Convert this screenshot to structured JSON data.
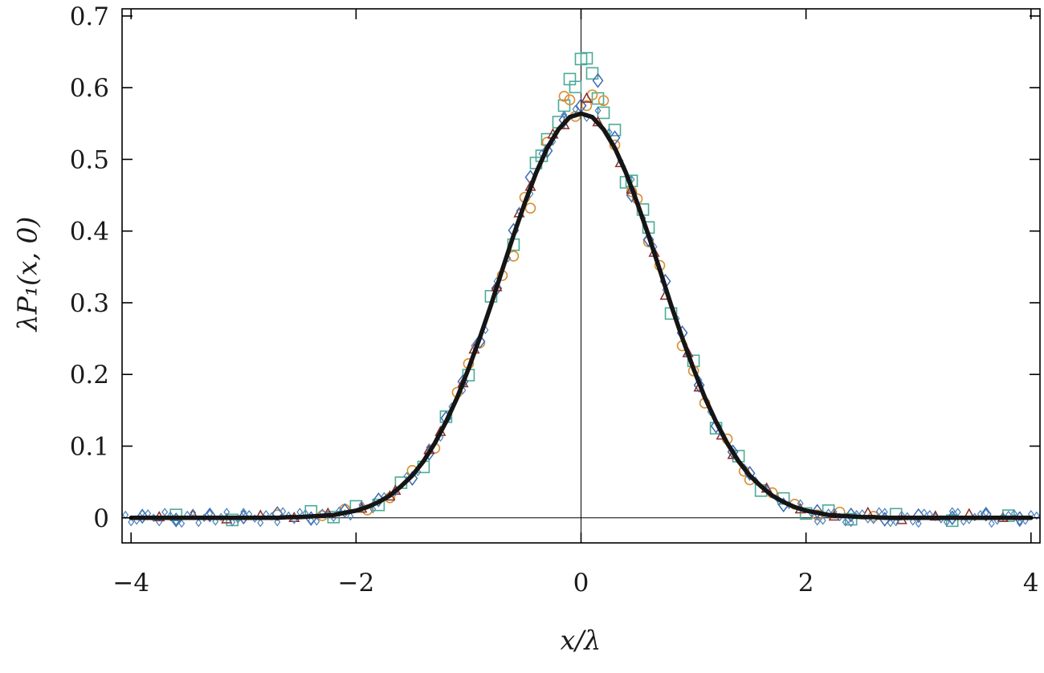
{
  "figure": {
    "background": "#ffffff",
    "frame_color": "#000000",
    "tick_label_color": "#1a1a1a"
  },
  "chart_data": {
    "type": "scatter",
    "title": "",
    "xlabel": "x/λ",
    "ylabel": "λP₁(x, 0)",
    "xlim": [
      -4.08,
      4.08
    ],
    "ylim": [
      -0.035,
      0.71
    ],
    "grid": false,
    "legend": "none",
    "x_ticks": [
      -4,
      -2,
      0,
      2,
      4
    ],
    "x_tick_labels": [
      "−4",
      "−2",
      "0",
      "2",
      "4"
    ],
    "y_ticks": [
      0,
      0.1,
      0.2,
      0.3,
      0.4,
      0.5,
      0.6,
      0.7
    ],
    "y_tick_labels": [
      "0",
      "0.1",
      "0.2",
      "0.3",
      "0.4",
      "0.5",
      "0.6",
      "0.7"
    ],
    "zero_lines": {
      "vertical_x": 0,
      "horizontal_y": 0
    },
    "curve": {
      "name": "theory-gaussian exp(-x^2)/sqrt(pi)",
      "color": "#151515",
      "width": 5.5,
      "x_start": -4.0,
      "x_step": 0.1,
      "y": [
        0,
        0,
        0,
        0,
        0,
        0,
        0,
        0,
        0,
        0,
        0,
        0,
        0,
        0,
        0.001,
        0.001,
        0.002,
        0.003,
        0.004,
        0.007,
        0.01,
        0.015,
        0.022,
        0.031,
        0.044,
        0.059,
        0.079,
        0.104,
        0.134,
        0.168,
        0.208,
        0.251,
        0.297,
        0.346,
        0.394,
        0.439,
        0.481,
        0.516,
        0.542,
        0.559,
        0.564,
        0.559,
        0.542,
        0.516,
        0.481,
        0.439,
        0.394,
        0.346,
        0.297,
        0.251,
        0.208,
        0.168,
        0.134,
        0.104,
        0.079,
        0.059,
        0.044,
        0.031,
        0.022,
        0.015,
        0.01,
        0.007,
        0.004,
        0.003,
        0.002,
        0.001,
        0.001,
        0,
        0,
        0,
        0,
        0,
        0,
        0,
        0,
        0,
        0,
        0,
        0,
        0,
        0
      ]
    },
    "series": [
      {
        "name": "squares",
        "marker": "square",
        "color": "#4aab96",
        "size": 14,
        "stroke_width": 1.6,
        "points": [
          [
            -3.6,
            0.004
          ],
          [
            -3.1,
            -0.003
          ],
          [
            -2.4,
            0.009
          ],
          [
            -2.2,
            0.001
          ],
          [
            -2.0,
            0.016
          ],
          [
            -1.8,
            0.018
          ],
          [
            -1.6,
            0.049
          ],
          [
            -1.4,
            0.071
          ],
          [
            -1.2,
            0.141
          ],
          [
            -1.0,
            0.199
          ],
          [
            -0.8,
            0.309
          ],
          [
            -0.6,
            0.381
          ],
          [
            -0.4,
            0.495
          ],
          [
            -0.35,
            0.505
          ],
          [
            -0.3,
            0.528
          ],
          [
            -0.2,
            0.552
          ],
          [
            -0.15,
            0.575
          ],
          [
            -0.1,
            0.612
          ],
          [
            -0.05,
            0.601
          ],
          [
            0,
            0.64
          ],
          [
            0.05,
            0.641
          ],
          [
            0.1,
            0.62
          ],
          [
            0.15,
            0.585
          ],
          [
            0.2,
            0.565
          ],
          [
            0.3,
            0.541
          ],
          [
            0.4,
            0.468
          ],
          [
            0.45,
            0.47
          ],
          [
            0.55,
            0.43
          ],
          [
            0.6,
            0.405
          ],
          [
            0.8,
            0.285
          ],
          [
            1.0,
            0.219
          ],
          [
            1.2,
            0.125
          ],
          [
            1.4,
            0.086
          ],
          [
            1.6,
            0.038
          ],
          [
            1.8,
            0.027
          ],
          [
            2.0,
            0.006
          ],
          [
            2.2,
            0.01
          ],
          [
            2.4,
            -0.002
          ],
          [
            2.8,
            0.005
          ],
          [
            3.3,
            -0.004
          ],
          [
            3.8,
            0.003
          ]
        ]
      },
      {
        "name": "circles",
        "marker": "circle",
        "color": "#d98e32",
        "size": 12,
        "stroke_width": 1.6,
        "points": [
          [
            -2.7,
            0.004
          ],
          [
            -2.3,
            0.003
          ],
          [
            -2.1,
            0.012
          ],
          [
            -1.9,
            0.011
          ],
          [
            -1.7,
            0.028
          ],
          [
            -1.5,
            0.066
          ],
          [
            -1.3,
            0.097
          ],
          [
            -1.1,
            0.175
          ],
          [
            -1.0,
            0.215
          ],
          [
            -0.9,
            0.244
          ],
          [
            -0.7,
            0.338
          ],
          [
            -0.6,
            0.365
          ],
          [
            -0.5,
            0.447
          ],
          [
            -0.45,
            0.432
          ],
          [
            -0.3,
            0.524
          ],
          [
            -0.15,
            0.588
          ],
          [
            -0.1,
            0.583
          ],
          [
            -0.05,
            0.56
          ],
          [
            0.05,
            0.575
          ],
          [
            0.1,
            0.59
          ],
          [
            0.2,
            0.582
          ],
          [
            0.3,
            0.52
          ],
          [
            0.45,
            0.455
          ],
          [
            0.5,
            0.445
          ],
          [
            0.6,
            0.385
          ],
          [
            0.7,
            0.352
          ],
          [
            0.9,
            0.24
          ],
          [
            1.0,
            0.205
          ],
          [
            1.1,
            0.16
          ],
          [
            1.3,
            0.11
          ],
          [
            1.45,
            0.065
          ],
          [
            1.5,
            0.053
          ],
          [
            1.7,
            0.035
          ],
          [
            1.9,
            0.019
          ],
          [
            2.1,
            0.004
          ],
          [
            2.3,
            0.008
          ],
          [
            2.6,
            0.002
          ]
        ]
      },
      {
        "name": "diamonds",
        "marker": "diamond",
        "color": "#3d6bb3",
        "size": 13,
        "stroke_width": 1.5,
        "points": [
          [
            -3.9,
            0.002
          ],
          [
            -3.6,
            -0.003
          ],
          [
            -3.3,
            0.004
          ],
          [
            -3.0,
            0.001
          ],
          [
            -2.7,
            0.006
          ],
          [
            -2.4,
            -0.001
          ],
          [
            -2.1,
            0.01
          ],
          [
            -1.8,
            0.025
          ],
          [
            -1.5,
            0.055
          ],
          [
            -1.35,
            0.09
          ],
          [
            -1.2,
            0.139
          ],
          [
            -1.05,
            0.19
          ],
          [
            -0.9,
            0.246
          ],
          [
            -0.75,
            0.32
          ],
          [
            -0.6,
            0.401
          ],
          [
            -0.45,
            0.475
          ],
          [
            -0.3,
            0.512
          ],
          [
            -0.15,
            0.555
          ],
          [
            0,
            0.575
          ],
          [
            0.15,
            0.61
          ],
          [
            0.3,
            0.53
          ],
          [
            0.45,
            0.45
          ],
          [
            0.6,
            0.388
          ],
          [
            0.75,
            0.33
          ],
          [
            0.9,
            0.258
          ],
          [
            1.05,
            0.185
          ],
          [
            1.2,
            0.128
          ],
          [
            1.35,
            0.092
          ],
          [
            1.5,
            0.062
          ],
          [
            1.8,
            0.018
          ],
          [
            2.1,
            0.009
          ],
          [
            2.4,
            0.004
          ],
          [
            2.7,
            -0.002
          ],
          [
            3.0,
            0.003
          ],
          [
            3.3,
            0.0
          ],
          [
            3.6,
            0.005
          ],
          [
            3.9,
            -0.001
          ]
        ]
      },
      {
        "name": "triangles",
        "marker": "triangle-up",
        "color": "#8a2f2b",
        "size": 10,
        "stroke_width": 1.5,
        "points": [
          [
            -3.75,
            0.001
          ],
          [
            -3.45,
            0.004
          ],
          [
            -3.15,
            -0.002
          ],
          [
            -2.85,
            0.003
          ],
          [
            -2.55,
            0.0
          ],
          [
            -2.25,
            0.006
          ],
          [
            -1.95,
            0.013
          ],
          [
            -1.7,
            0.03
          ],
          [
            -1.65,
            0.038
          ],
          [
            -1.35,
            0.095
          ],
          [
            -1.25,
            0.12
          ],
          [
            -1.05,
            0.188
          ],
          [
            -0.95,
            0.235
          ],
          [
            -0.75,
            0.322
          ],
          [
            -0.55,
            0.425
          ],
          [
            -0.45,
            0.462
          ],
          [
            -0.25,
            0.535
          ],
          [
            -0.15,
            0.548
          ],
          [
            0.05,
            0.585
          ],
          [
            0.15,
            0.552
          ],
          [
            0.35,
            0.495
          ],
          [
            0.45,
            0.458
          ],
          [
            0.65,
            0.37
          ],
          [
            0.75,
            0.31
          ],
          [
            0.95,
            0.23
          ],
          [
            1.05,
            0.182
          ],
          [
            1.25,
            0.115
          ],
          [
            1.35,
            0.088
          ],
          [
            1.65,
            0.041
          ],
          [
            1.95,
            0.012
          ],
          [
            2.25,
            0.002
          ],
          [
            2.55,
            0.007
          ],
          [
            2.85,
            -0.003
          ],
          [
            3.15,
            0.002
          ],
          [
            3.45,
            0.005
          ],
          [
            3.75,
            0.0
          ]
        ]
      },
      {
        "name": "small-diamonds",
        "marker": "diamond",
        "color": "#4d82bb",
        "size": 7,
        "stroke_width": 1.2,
        "points": [
          [
            -4.05,
            0.004
          ],
          [
            -3.95,
            -0.004
          ],
          [
            -3.85,
            0.006
          ],
          [
            -3.75,
            -0.006
          ],
          [
            -3.65,
            0.003
          ],
          [
            -3.55,
            -0.008
          ],
          [
            -3.45,
            0.007
          ],
          [
            -3.35,
            0.0
          ],
          [
            -3.25,
            -0.005
          ],
          [
            -3.15,
            0.008
          ],
          [
            -3.05,
            -0.002
          ],
          [
            -2.95,
            0.005
          ],
          [
            -2.85,
            -0.007
          ],
          [
            -2.75,
            0.002
          ],
          [
            -2.65,
            0.009
          ],
          [
            -2.55,
            -0.003
          ],
          [
            -2.45,
            0.006
          ],
          [
            -2.35,
            -0.005
          ],
          [
            -2.25,
            0.004
          ],
          [
            -2.15,
            0.01
          ],
          [
            -2.05,
            0.002
          ],
          [
            -1.95,
            0.018
          ],
          [
            -1.85,
            0.012
          ],
          [
            -1.75,
            0.03
          ],
          [
            -1.65,
            0.036
          ],
          [
            -1.55,
            0.058
          ],
          [
            -1.45,
            0.064
          ],
          [
            -1.35,
            0.098
          ],
          [
            -1.25,
            0.112
          ],
          [
            -1.15,
            0.155
          ],
          [
            -1.05,
            0.178
          ],
          [
            -0.95,
            0.24
          ],
          [
            -0.85,
            0.262
          ],
          [
            -0.75,
            0.33
          ],
          [
            -0.65,
            0.362
          ],
          [
            -0.55,
            0.428
          ],
          [
            -0.45,
            0.452
          ],
          [
            -0.35,
            0.508
          ],
          [
            -0.25,
            0.525
          ],
          [
            -0.15,
            0.562
          ],
          [
            -0.05,
            0.57
          ],
          [
            0.05,
            0.558
          ],
          [
            0.15,
            0.568
          ],
          [
            0.25,
            0.538
          ],
          [
            0.35,
            0.498
          ],
          [
            0.45,
            0.472
          ],
          [
            0.55,
            0.418
          ],
          [
            0.65,
            0.378
          ],
          [
            0.75,
            0.318
          ],
          [
            0.85,
            0.278
          ],
          [
            0.95,
            0.228
          ],
          [
            1.05,
            0.192
          ],
          [
            1.15,
            0.148
          ],
          [
            1.25,
            0.118
          ],
          [
            1.35,
            0.092
          ],
          [
            1.45,
            0.07
          ],
          [
            1.55,
            0.052
          ],
          [
            1.65,
            0.04
          ],
          [
            1.75,
            0.026
          ],
          [
            1.85,
            0.018
          ],
          [
            1.95,
            0.02
          ],
          [
            2.05,
            0.006
          ],
          [
            2.15,
            -0.004
          ],
          [
            2.25,
            0.008
          ],
          [
            2.35,
            -0.006
          ],
          [
            2.45,
            0.005
          ],
          [
            2.55,
            -0.002
          ],
          [
            2.65,
            0.009
          ],
          [
            2.75,
            -0.007
          ],
          [
            2.85,
            0.004
          ],
          [
            2.95,
            -0.005
          ],
          [
            3.05,
            0.007
          ],
          [
            3.15,
            0.001
          ],
          [
            3.25,
            -0.006
          ],
          [
            3.35,
            0.008
          ],
          [
            3.45,
            -0.003
          ],
          [
            3.55,
            0.005
          ],
          [
            3.65,
            -0.008
          ],
          [
            3.75,
            0.002
          ],
          [
            3.85,
            0.006
          ],
          [
            3.95,
            -0.004
          ],
          [
            4.05,
            0.003
          ],
          [
            -4.0,
            -0.006
          ],
          [
            -3.9,
            0.007
          ],
          [
            -3.8,
            0.0
          ],
          [
            -3.7,
            0.008
          ],
          [
            -3.6,
            -0.005
          ],
          [
            -3.5,
            0.004
          ],
          [
            -3.4,
            -0.007
          ],
          [
            -3.3,
            0.006
          ],
          [
            -3.2,
            0.001
          ],
          [
            -3.1,
            -0.006
          ],
          [
            -3.0,
            0.008
          ],
          [
            -2.9,
            -0.001
          ],
          [
            -2.8,
            0.005
          ],
          [
            -2.7,
            -0.006
          ],
          [
            -2.6,
            0.003
          ],
          [
            -2.5,
            0.008
          ],
          [
            -2.4,
            -0.004
          ],
          [
            -2.3,
            0.007
          ],
          [
            -2.2,
            0.0
          ],
          [
            -2.1,
            0.006
          ],
          [
            2.1,
            -0.005
          ],
          [
            2.2,
            0.007
          ],
          [
            2.3,
            0.001
          ],
          [
            2.4,
            -0.007
          ],
          [
            2.5,
            0.006
          ],
          [
            2.6,
            -0.003
          ],
          [
            2.7,
            0.008
          ],
          [
            2.8,
            -0.006
          ],
          [
            2.9,
            0.002
          ],
          [
            3.0,
            -0.008
          ],
          [
            3.1,
            0.005
          ],
          [
            3.2,
            -0.002
          ],
          [
            3.3,
            0.009
          ],
          [
            3.4,
            -0.005
          ],
          [
            3.5,
            0.001
          ],
          [
            3.6,
            0.007
          ],
          [
            3.7,
            -0.004
          ],
          [
            3.8,
            0.004
          ],
          [
            3.9,
            -0.007
          ],
          [
            4.0,
            0.005
          ]
        ]
      }
    ]
  }
}
